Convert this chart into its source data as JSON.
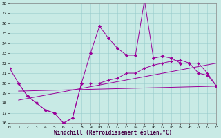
{
  "bg_color": "#c8eae5",
  "line_color": "#990099",
  "grid_color": "#99cccc",
  "xlabel": "Windchill (Refroidissement éolien,°C)",
  "xlim": [
    0,
    23
  ],
  "ylim": [
    16,
    28
  ],
  "yticks": [
    16,
    17,
    18,
    19,
    20,
    21,
    22,
    23,
    24,
    25,
    26,
    27,
    28
  ],
  "xticks": [
    0,
    1,
    2,
    3,
    4,
    5,
    6,
    7,
    8,
    9,
    10,
    11,
    12,
    13,
    14,
    15,
    16,
    17,
    18,
    19,
    20,
    21,
    22,
    23
  ],
  "line1_x": [
    0,
    1,
    2,
    3,
    4,
    5,
    6,
    7,
    8,
    9,
    10,
    11,
    12,
    13,
    14,
    15,
    16,
    17,
    18,
    19,
    20,
    21,
    22,
    23
  ],
  "line1_y": [
    21.5,
    20.0,
    18.7,
    18.0,
    17.3,
    17.0,
    16.0,
    16.5,
    20.0,
    23.0,
    25.7,
    24.5,
    23.5,
    22.8,
    22.8,
    28.3,
    22.5,
    22.7,
    22.5,
    22.0,
    22.0,
    21.0,
    20.8,
    19.7
  ],
  "line2_x": [
    1,
    2,
    3,
    4,
    5,
    6,
    7,
    8,
    9,
    10,
    11,
    12,
    13,
    14,
    15,
    16,
    17,
    18,
    19,
    20,
    21,
    22,
    23
  ],
  "line2_y": [
    20.0,
    18.7,
    18.0,
    17.3,
    17.0,
    16.0,
    16.5,
    20.0,
    20.0,
    20.0,
    20.3,
    20.5,
    21.0,
    21.0,
    21.5,
    21.8,
    22.0,
    22.2,
    22.3,
    22.0,
    22.0,
    21.0,
    19.7
  ],
  "line3_x": [
    1,
    23
  ],
  "line3_y": [
    19.2,
    19.7
  ],
  "line4_x": [
    1,
    23
  ],
  "line4_y": [
    18.3,
    22.0
  ]
}
